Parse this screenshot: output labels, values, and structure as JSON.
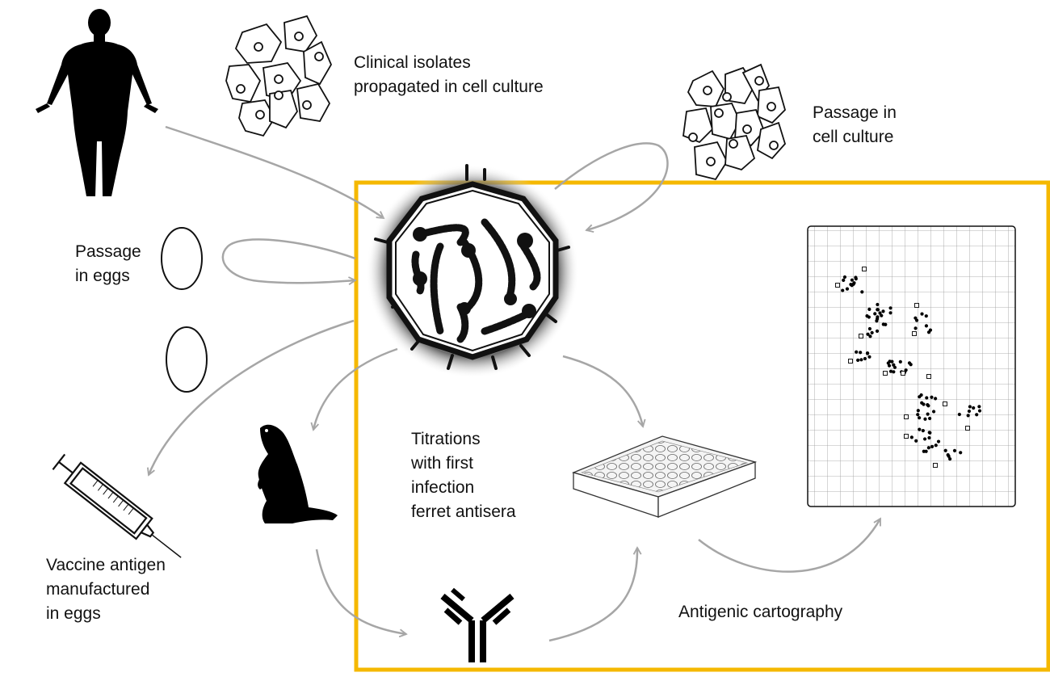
{
  "labels": {
    "clinical_isolates": [
      "Clinical isolates",
      "propagated in cell culture"
    ],
    "passage_cell": [
      "Passage in",
      "cell culture"
    ],
    "passage_eggs": [
      "Passage",
      "in eggs"
    ],
    "vaccine": [
      "Vaccine antigen",
      "manufactured",
      "in eggs"
    ],
    "titrations": [
      "Titrations",
      "with first",
      "infection",
      "ferret antisera"
    ],
    "cartography": "Antigenic cartography"
  },
  "colors": {
    "highlight_box": "#f5b800",
    "arrow": "#a6a6a6",
    "ink": "#000000"
  },
  "icons": [
    "human-silhouette-icon",
    "cell-culture-icon",
    "egg-icon",
    "virus-icon",
    "syringe-icon",
    "ferret-icon",
    "antibody-icon",
    "microplate-icon",
    "antigenic-map-icon"
  ]
}
